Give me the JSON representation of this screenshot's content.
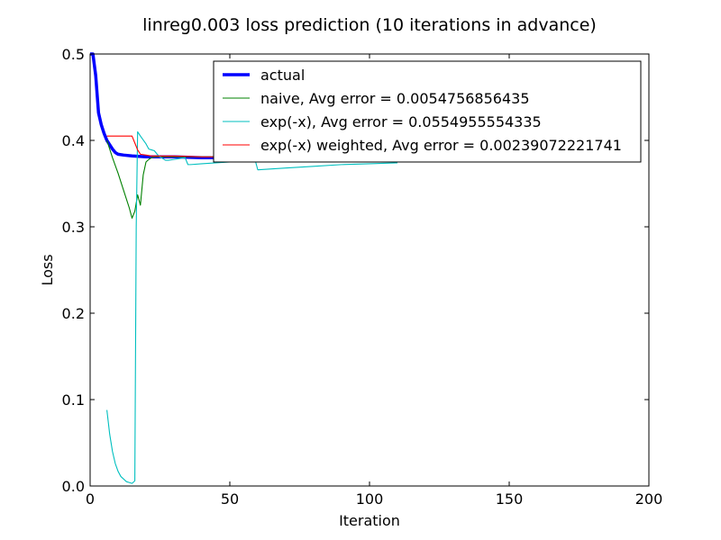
{
  "chart_data": {
    "type": "line",
    "title": "linreg0.003 loss prediction (10 iterations in advance)",
    "xlabel": "Iteration",
    "ylabel": "Loss",
    "xlim": [
      0,
      200
    ],
    "ylim": [
      0,
      0.5
    ],
    "xticks": [
      0,
      50,
      100,
      150,
      200
    ],
    "xtick_labels": [
      "0",
      "50",
      "100",
      "150",
      "200"
    ],
    "yticks": [
      0.0,
      0.1,
      0.2,
      0.3,
      0.4,
      0.5
    ],
    "ytick_labels": [
      "0.0",
      "0.1",
      "0.2",
      "0.3",
      "0.4",
      "0.5"
    ],
    "grid": false,
    "legend_position": "top-right",
    "series": [
      {
        "name": "actual",
        "color": "#0000ff",
        "linewidth": "thick",
        "x": [
          0,
          1,
          2,
          3,
          4,
          5,
          6,
          7,
          8,
          9,
          10,
          12,
          15,
          20,
          25,
          30,
          40,
          50,
          60,
          80,
          100,
          110
        ],
        "y": [
          0.5,
          0.5,
          0.475,
          0.432,
          0.418,
          0.408,
          0.4,
          0.395,
          0.39,
          0.386,
          0.384,
          0.383,
          0.382,
          0.381,
          0.381,
          0.381,
          0.38,
          0.38,
          0.38,
          0.38,
          0.38,
          0.38
        ]
      },
      {
        "name": "naive, Avg error = 0.0054756856435",
        "color": "#008000",
        "linewidth": "thin",
        "x": [
          6,
          8,
          10,
          12,
          14,
          15,
          16,
          17,
          18,
          19,
          20,
          21,
          22,
          23,
          25,
          30,
          40,
          50,
          60,
          80,
          100,
          110
        ],
        "y": [
          0.4,
          0.38,
          0.362,
          0.342,
          0.322,
          0.31,
          0.318,
          0.337,
          0.325,
          0.36,
          0.375,
          0.378,
          0.38,
          0.381,
          0.381,
          0.381,
          0.381,
          0.381,
          0.38,
          0.38,
          0.38,
          0.38
        ]
      },
      {
        "name": "exp(-x), Avg error = 0.0554955554335",
        "color": "#00bfbf",
        "linewidth": "thin",
        "x": [
          6,
          7,
          8,
          9,
          10,
          11,
          12,
          13,
          14,
          15,
          16,
          16.5,
          17,
          18,
          20,
          21,
          22,
          23,
          24,
          25,
          26,
          27,
          28,
          30,
          32,
          34,
          35,
          36,
          40,
          45,
          50,
          55,
          58,
          59,
          60,
          65,
          70,
          80,
          90,
          100,
          110
        ],
        "y": [
          0.088,
          0.06,
          0.04,
          0.026,
          0.017,
          0.011,
          0.008,
          0.005,
          0.004,
          0.003,
          0.006,
          0.3,
          0.41,
          0.405,
          0.396,
          0.39,
          0.389,
          0.388,
          0.384,
          0.381,
          0.379,
          0.377,
          0.377,
          0.378,
          0.379,
          0.38,
          0.372,
          0.372,
          0.373,
          0.374,
          0.375,
          0.376,
          0.376,
          0.378,
          0.366,
          0.367,
          0.368,
          0.37,
          0.372,
          0.373,
          0.374
        ]
      },
      {
        "name": "exp(-x) weighted, Avg error = 0.00239072221741",
        "color": "#ff0000",
        "linewidth": "thin",
        "x": [
          6,
          8,
          10,
          12,
          14,
          15,
          16,
          17,
          18,
          20,
          22,
          25,
          30,
          40,
          50,
          60,
          80,
          100,
          110
        ],
        "y": [
          0.405,
          0.405,
          0.405,
          0.405,
          0.405,
          0.405,
          0.397,
          0.389,
          0.384,
          0.383,
          0.382,
          0.382,
          0.382,
          0.381,
          0.381,
          0.381,
          0.381,
          0.381,
          0.381
        ]
      }
    ]
  }
}
